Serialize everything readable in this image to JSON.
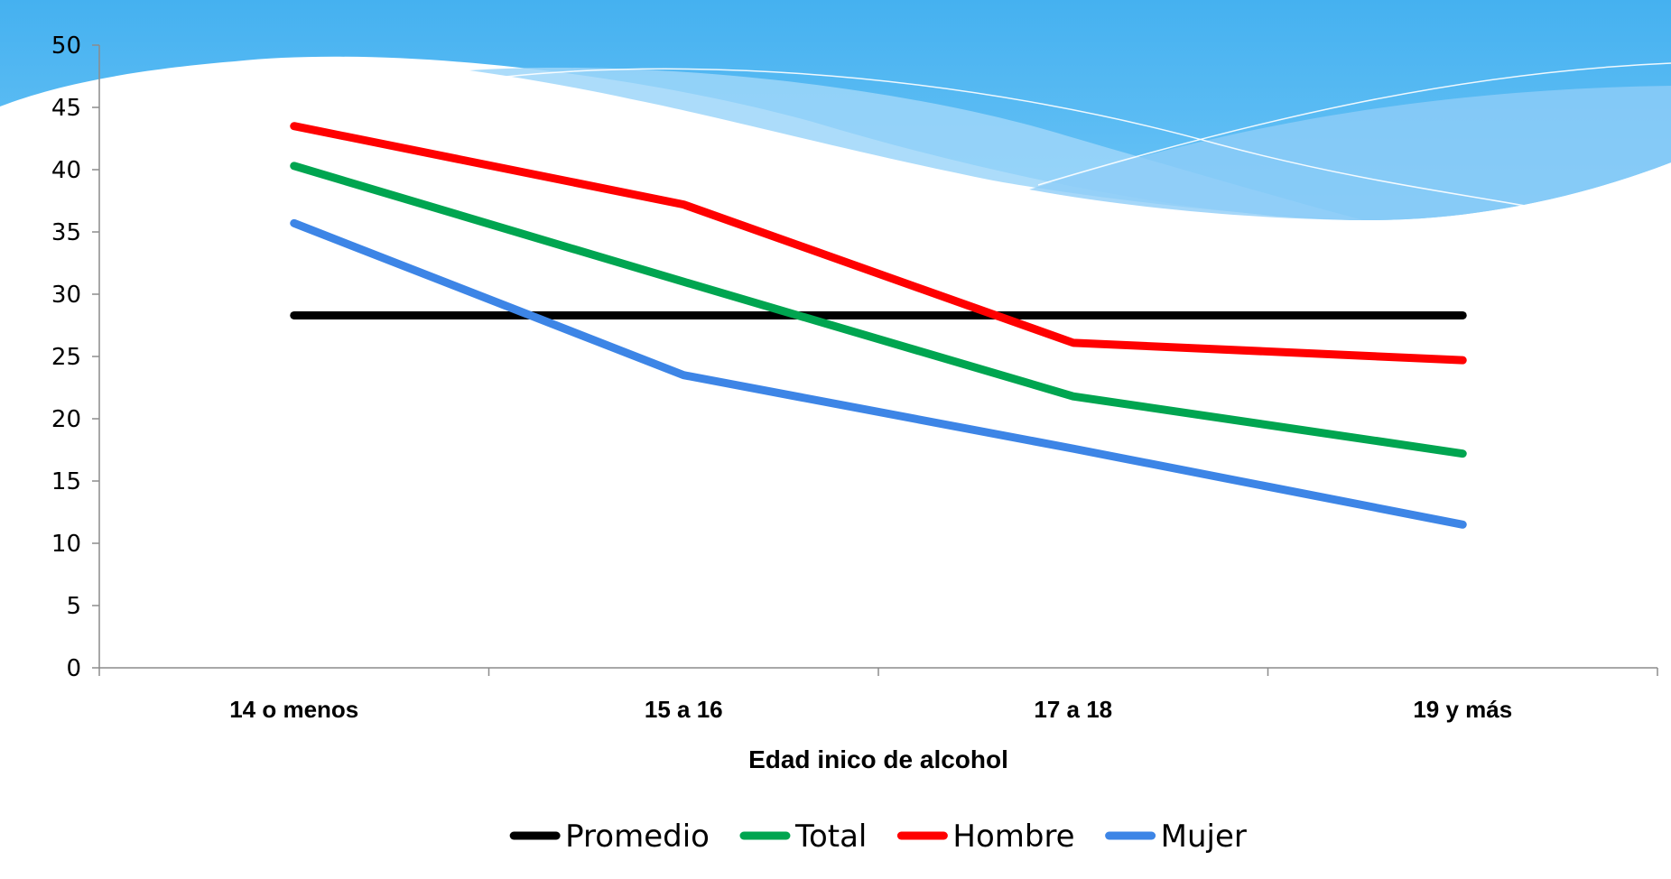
{
  "chart_data": {
    "type": "line",
    "title": "",
    "xlabel": "Edad inico de alcohol",
    "ylabel": "",
    "categories": [
      "14 o menos",
      "15 a 16",
      "17 a 18",
      "19 y más"
    ],
    "ylim": [
      0,
      50
    ],
    "yticks": [
      0,
      5,
      10,
      15,
      20,
      25,
      30,
      35,
      40,
      45,
      50
    ],
    "grid": false,
    "legend_position": "bottom",
    "series": [
      {
        "name": "Promedio",
        "color": "#000000",
        "values": [
          28.3,
          28.3,
          28.3,
          28.3
        ]
      },
      {
        "name": "Total",
        "color": "#00A550",
        "values": [
          40.3,
          31.0,
          21.8,
          17.2
        ]
      },
      {
        "name": "Hombre",
        "color": "#FF0000",
        "values": [
          43.5,
          37.2,
          26.1,
          24.7
        ]
      },
      {
        "name": "Mujer",
        "color": "#3D85E6",
        "values": [
          35.7,
          23.5,
          17.6,
          11.5
        ]
      }
    ]
  }
}
